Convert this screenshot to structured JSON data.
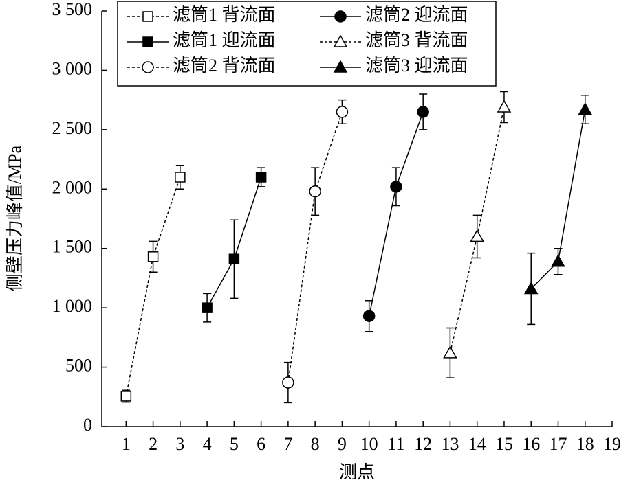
{
  "chart_data": {
    "type": "line",
    "xlabel": "测点",
    "ylabel": "侧壁压力峰值/MPa",
    "xlim": [
      0.1,
      19
    ],
    "xticks": [
      1,
      2,
      3,
      4,
      5,
      6,
      7,
      8,
      9,
      10,
      11,
      12,
      13,
      14,
      15,
      16,
      17,
      18,
      19
    ],
    "ylim": [
      0,
      3500
    ],
    "yticks": [
      0,
      500,
      {
        "value": 1000,
        "label": "1 000"
      },
      {
        "value": 1500,
        "label": "1 500"
      },
      {
        "value": 2000,
        "label": "2 000"
      },
      {
        "value": 2500,
        "label": "2 500"
      },
      {
        "value": 3000,
        "label": "3 000"
      },
      {
        "value": 3500,
        "label": "3 500"
      }
    ],
    "series": [
      {
        "name": "滤筒1 背流面",
        "color": "#000000",
        "marker": "square",
        "filled": false,
        "dashed": true,
        "x": [
          1,
          2,
          3
        ],
        "values": [
          255,
          1430,
          2100
        ],
        "errors": [
          50,
          130,
          100
        ]
      },
      {
        "name": "滤筒1 迎流面",
        "color": "#000000",
        "marker": "square",
        "filled": true,
        "dashed": false,
        "x": [
          4,
          5,
          6
        ],
        "values": [
          1000,
          1410,
          2100
        ],
        "errors": [
          120,
          330,
          80
        ]
      },
      {
        "name": "滤筒2 背流面",
        "color": "#000000",
        "marker": "circle",
        "filled": false,
        "dashed": true,
        "x": [
          7,
          8,
          9
        ],
        "values": [
          370,
          1980,
          2650
        ],
        "errors": [
          170,
          200,
          100
        ]
      },
      {
        "name": "滤筒2 迎流面",
        "color": "#000000",
        "marker": "circle",
        "filled": true,
        "dashed": false,
        "x": [
          10,
          11,
          12
        ],
        "values": [
          930,
          2020,
          2650
        ],
        "errors": [
          130,
          160,
          150
        ]
      },
      {
        "name": "滤筒3 背流面",
        "color": "#000000",
        "marker": "triangle",
        "filled": false,
        "dashed": true,
        "x": [
          13,
          14,
          15
        ],
        "values": [
          620,
          1600,
          2690
        ],
        "errors": [
          210,
          180,
          130
        ]
      },
      {
        "name": "滤筒3 迎流面",
        "color": "#000000",
        "marker": "triangle",
        "filled": true,
        "dashed": false,
        "x": [
          16,
          17,
          18
        ],
        "values": [
          1160,
          1390,
          2670
        ],
        "errors": [
          300,
          110,
          120
        ]
      }
    ]
  }
}
